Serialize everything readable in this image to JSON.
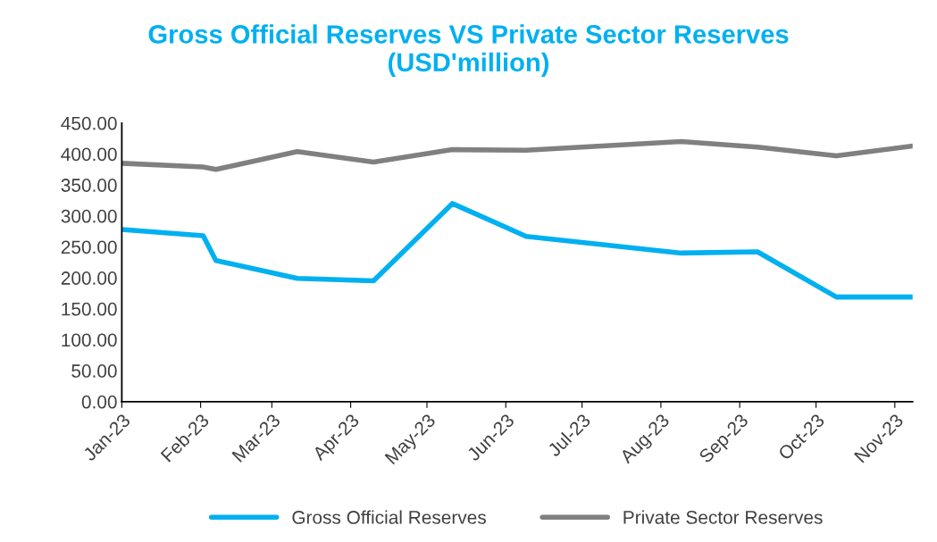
{
  "chart_data": {
    "type": "line",
    "title": "Gross Official Reserves VS Private Sector Reserves\n(USD'million)",
    "x": [
      "2023-01-01",
      "2023-02-02",
      "2023-02-07",
      "2023-03-11",
      "2023-04-10",
      "2023-05-11",
      "2023-06-09",
      "2023-08-09",
      "2023-09-08",
      "2023-10-09",
      "2023-11-08"
    ],
    "series": [
      {
        "name": "Gross Official Reserves",
        "color": "#00b0f0",
        "values": [
          278,
          268,
          228,
          199,
          195,
          320,
          267,
          240,
          242,
          169,
          169
        ]
      },
      {
        "name": "Private Sector Reserves",
        "color": "#808080",
        "values": [
          385,
          379,
          375,
          404,
          387,
          407,
          406,
          420,
          411,
          397,
          413
        ]
      }
    ],
    "xlim": [
      "2023-01-01",
      "2023-11-08"
    ],
    "xticks": [
      {
        "value": "2023-01-01",
        "label": "Jan-23"
      },
      {
        "value": "2023-02-01",
        "label": "Feb-23"
      },
      {
        "value": "2023-03-01",
        "label": "Mar-23"
      },
      {
        "value": "2023-04-01",
        "label": "Apr-23"
      },
      {
        "value": "2023-05-01",
        "label": "May-23"
      },
      {
        "value": "2023-06-01",
        "label": "Jun-23"
      },
      {
        "value": "2023-07-01",
        "label": "Jul-23"
      },
      {
        "value": "2023-08-01",
        "label": "Aug-23"
      },
      {
        "value": "2023-09-01",
        "label": "Sep-23"
      },
      {
        "value": "2023-10-01",
        "label": "Oct-23"
      },
      {
        "value": "2023-11-01",
        "label": "Nov-23"
      }
    ],
    "ylim": [
      0,
      450
    ],
    "yticks": [
      {
        "value": 0,
        "label": "0.00"
      },
      {
        "value": 50,
        "label": "50.00"
      },
      {
        "value": 100,
        "label": "100.00"
      },
      {
        "value": 150,
        "label": "150.00"
      },
      {
        "value": 200,
        "label": "200.00"
      },
      {
        "value": 250,
        "label": "250.00"
      },
      {
        "value": 300,
        "label": "300.00"
      },
      {
        "value": 350,
        "label": "350.00"
      },
      {
        "value": 400,
        "label": "400.00"
      },
      {
        "value": 450,
        "label": "450.00"
      }
    ],
    "grid": false,
    "legend": "bottom",
    "marker": "none",
    "line_style": "solid"
  }
}
